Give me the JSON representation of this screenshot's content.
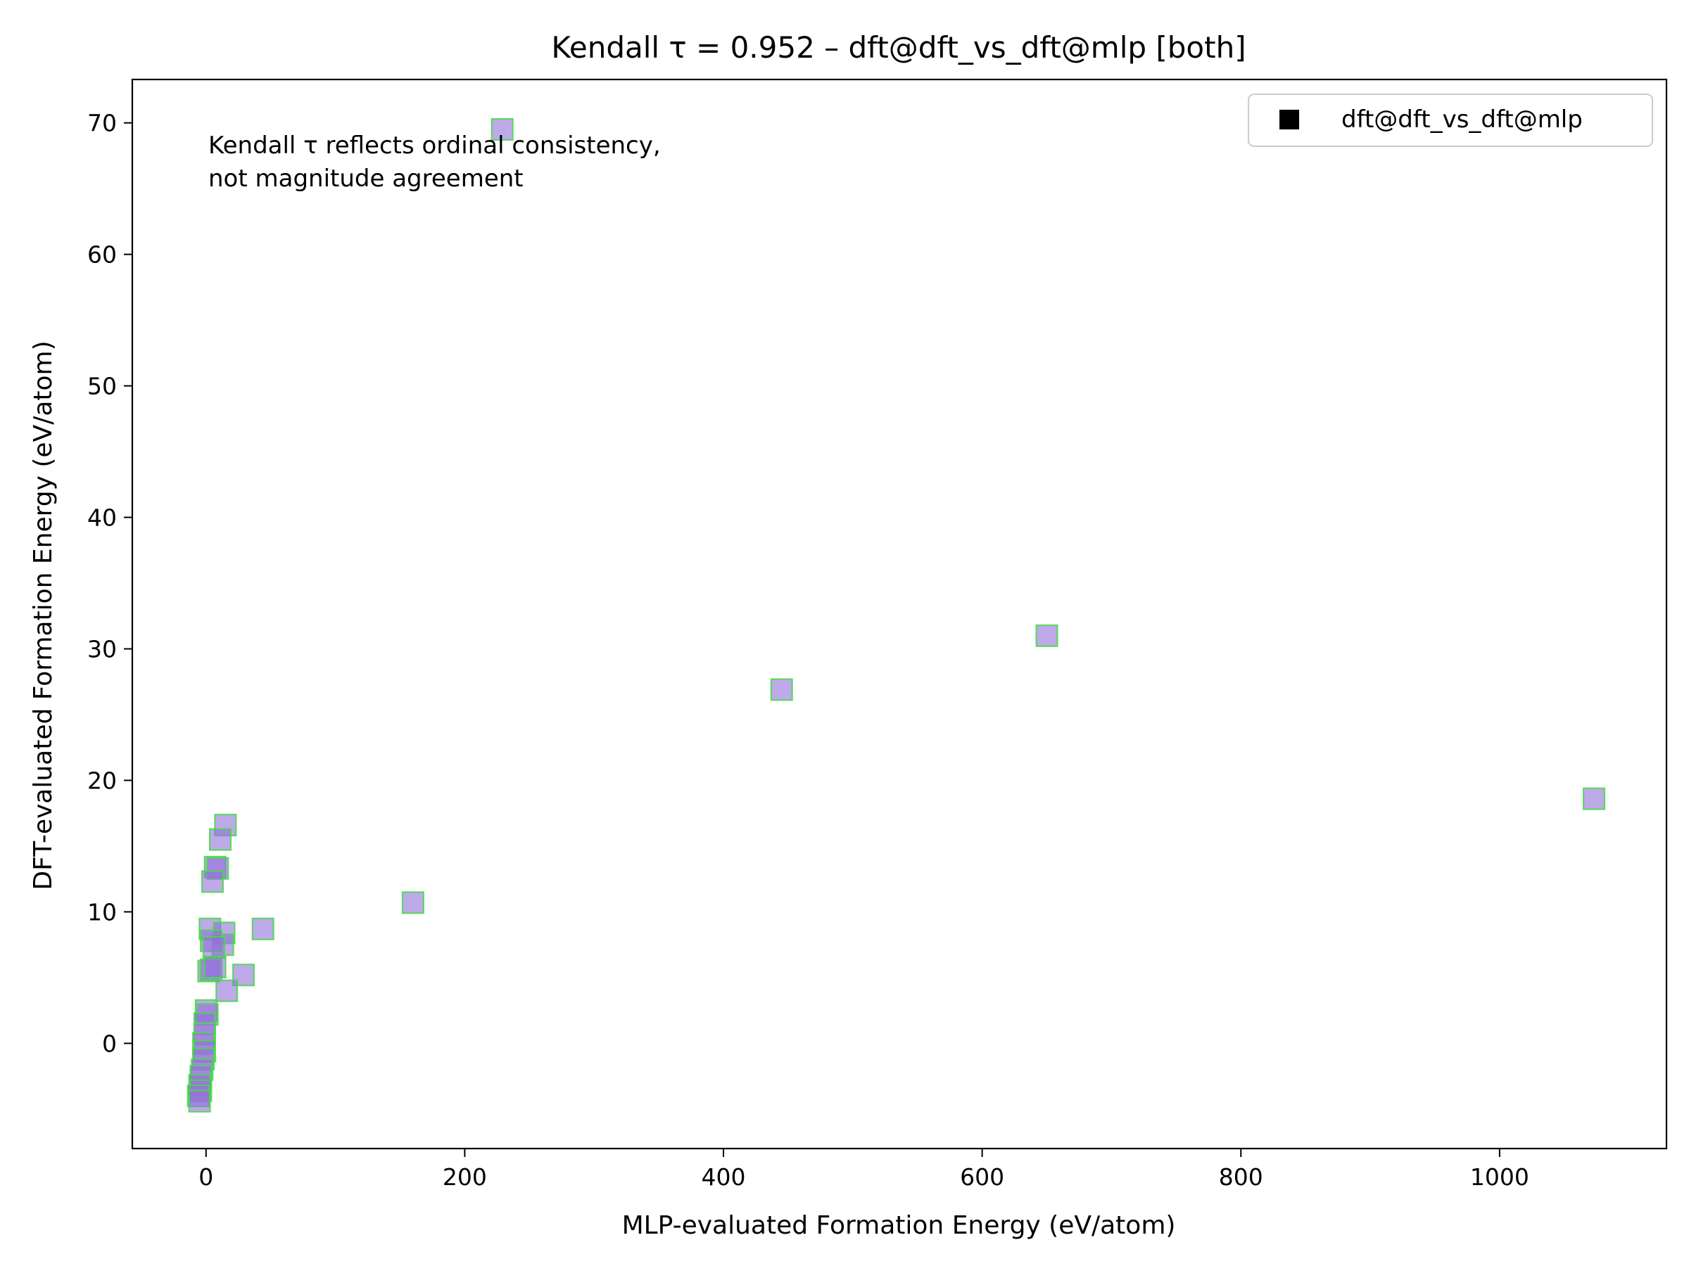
{
  "chart_data": {
    "type": "scatter",
    "title": "Kendall τ = 0.952 – dft@dft_vs_dft@mlp [both]",
    "xlabel": "MLP-evaluated Formation Energy (eV/atom)",
    "ylabel": "DFT-evaluated Formation Energy (eV/atom)",
    "xlim": [
      -57,
      1129
    ],
    "ylim": [
      -8,
      73.3
    ],
    "xticks": [
      0,
      200,
      400,
      600,
      800,
      1000
    ],
    "yticks": [
      0,
      10,
      20,
      30,
      40,
      50,
      60,
      70
    ],
    "grid": false,
    "legend_position": "top-right",
    "annotation": [
      "Kendall τ reflects ordinal consistency,",
      "not magnitude agreement"
    ],
    "colors": {
      "marker_fill": "#9370db",
      "marker_edge": "#44dd44",
      "legend_marker": "#000000"
    },
    "series": [
      {
        "name": "dft@dft_vs_dft@mlp",
        "marker": "square",
        "points": [
          {
            "x": 229,
            "y": 69.5
          },
          {
            "x": 650,
            "y": 31.0
          },
          {
            "x": 445,
            "y": 26.9
          },
          {
            "x": 1073,
            "y": 18.6
          },
          {
            "x": 160,
            "y": 10.7
          },
          {
            "x": 44,
            "y": 8.7
          },
          {
            "x": 29,
            "y": 5.2
          },
          {
            "x": 15,
            "y": 16.6
          },
          {
            "x": 11,
            "y": 15.5
          },
          {
            "x": 7,
            "y": 13.4
          },
          {
            "x": 9,
            "y": 13.3
          },
          {
            "x": 5,
            "y": 12.3
          },
          {
            "x": 3,
            "y": 8.7
          },
          {
            "x": 14,
            "y": 8.4
          },
          {
            "x": 13,
            "y": 7.5
          },
          {
            "x": 4,
            "y": 7.8
          },
          {
            "x": 6,
            "y": 7.3
          },
          {
            "x": 2,
            "y": 5.5
          },
          {
            "x": 4,
            "y": 5.6
          },
          {
            "x": 7,
            "y": 5.8
          },
          {
            "x": 16,
            "y": 4.0
          },
          {
            "x": 0,
            "y": 2.5
          },
          {
            "x": 1,
            "y": 2.2
          },
          {
            "x": -1,
            "y": 1.5
          },
          {
            "x": -1,
            "y": 0.7
          },
          {
            "x": -2,
            "y": 0.0
          },
          {
            "x": -1,
            "y": -0.6
          },
          {
            "x": -2,
            "y": -1.2
          },
          {
            "x": -3,
            "y": -2.0
          },
          {
            "x": -4,
            "y": -2.5
          },
          {
            "x": -5,
            "y": -3.2
          },
          {
            "x": -4,
            "y": -3.6
          },
          {
            "x": -6,
            "y": -4.0
          },
          {
            "x": -5,
            "y": -4.4
          }
        ]
      }
    ]
  }
}
